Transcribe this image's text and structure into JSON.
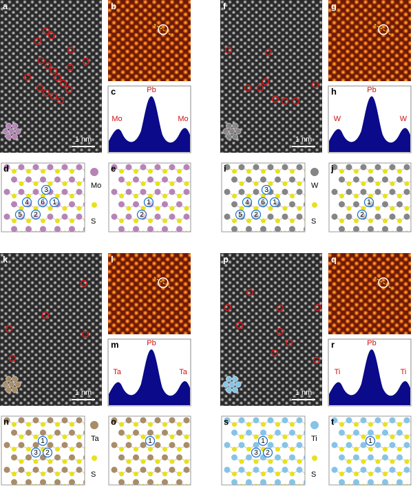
{
  "groups": [
    {
      "image_label": "a",
      "heatmap_label": "b",
      "profile_label": "c",
      "structure_label": "d",
      "structure2_label": "e",
      "scale_bar": "1 nm",
      "profile": {
        "left": "Mo",
        "center": "Pb",
        "right": "Mo"
      },
      "legend": {
        "metal": "Mo",
        "chalcogen": "S"
      },
      "sites": [
        "1",
        "2",
        "3",
        "4",
        "5",
        "6"
      ],
      "sites2": [
        "1",
        "2"
      ]
    },
    {
      "image_label": "f",
      "heatmap_label": "g",
      "profile_label": "h",
      "structure_label": "i",
      "structure2_label": "j",
      "scale_bar": "1 nm",
      "profile": {
        "left": "W",
        "center": "Pb",
        "right": "W"
      },
      "legend": {
        "metal": "W",
        "chalcogen": "S"
      },
      "sites": [
        "1",
        "2",
        "3",
        "4",
        "5",
        "6"
      ],
      "sites2": [
        "1",
        "2"
      ]
    },
    {
      "image_label": "k",
      "heatmap_label": "l",
      "profile_label": "m",
      "structure_label": "n",
      "structure2_label": "o",
      "scale_bar": "1 nm",
      "profile": {
        "left": "Ta",
        "center": "Pb",
        "right": "Ta"
      },
      "legend": {
        "metal": "Ta",
        "chalcogen": "S"
      },
      "sites": [
        "1",
        "2",
        "3"
      ],
      "sites2": [
        "1"
      ]
    },
    {
      "image_label": "p",
      "heatmap_label": "q",
      "profile_label": "r",
      "structure_label": "s",
      "structure2_label": "t",
      "scale_bar": "1 nm",
      "profile": {
        "left": "Ti",
        "center": "Pb",
        "right": "Ti"
      },
      "legend": {
        "metal": "Ti",
        "chalcogen": "S"
      },
      "sites": [
        "1",
        "2",
        "3"
      ],
      "sites2": [
        "1"
      ]
    }
  ]
}
